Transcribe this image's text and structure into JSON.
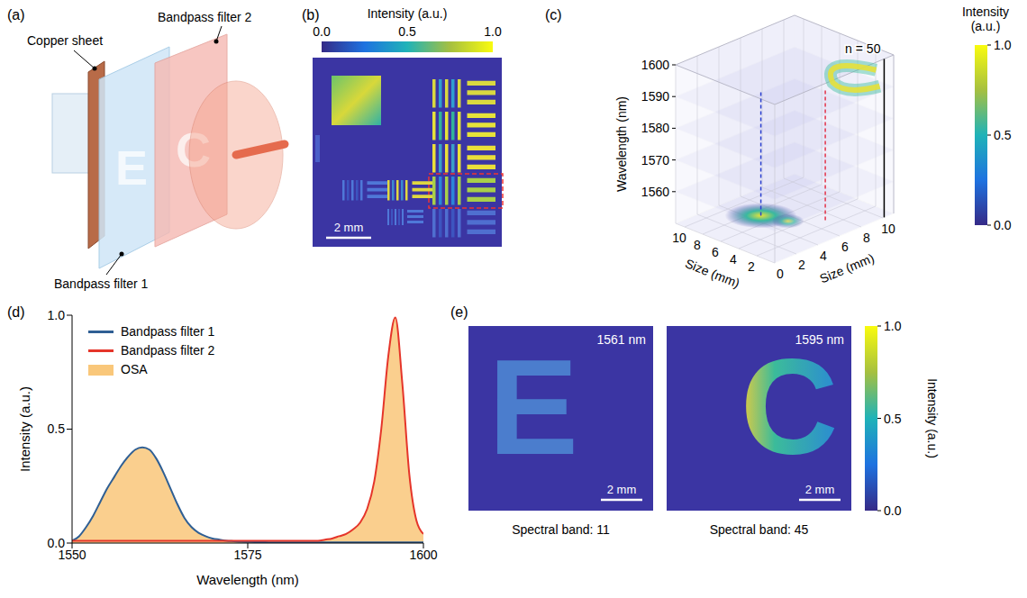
{
  "panels": {
    "a": {
      "letter": "(a)",
      "labels": {
        "copper": "Copper sheet",
        "filter2": "Bandpass filter 2",
        "filter1": "Bandpass filter 1"
      },
      "letters": [
        "E",
        "C"
      ]
    },
    "b": {
      "letter": "(b)",
      "colorbar": {
        "title": "Intensity (a.u.)",
        "range": [
          0,
          1
        ],
        "ticks": [
          {
            "value": 0,
            "label": "0.0"
          },
          {
            "value": 0.5,
            "label": "0.5"
          },
          {
            "value": 1,
            "label": "1.0"
          }
        ]
      },
      "scale_bar": "2 mm"
    },
    "c": {
      "letter": "(c)",
      "wavelength_axis": {
        "title": "Wavelength (nm)",
        "range": [
          1550,
          1600
        ],
        "ticks": [
          1560,
          1570,
          1580,
          1590,
          1600
        ]
      },
      "size_axes": [
        {
          "title": "Size (mm)",
          "range": [
            0,
            11
          ],
          "ticks": [
            2,
            4,
            6,
            8,
            10
          ]
        },
        {
          "title": "Size (mm)",
          "range": [
            0,
            11
          ],
          "ticks": [
            0,
            2,
            4,
            6,
            8,
            10
          ]
        }
      ],
      "annotation": "n = 50",
      "colorbar": {
        "title": "Intensity (a.u.)",
        "range": [
          0,
          1
        ],
        "ticks": [
          {
            "value": 0,
            "label": "0.0"
          },
          {
            "value": 0.5,
            "label": "0.5"
          },
          {
            "value": 1,
            "label": "1.0"
          }
        ]
      }
    },
    "d": {
      "letter": "(d)"
    },
    "e": {
      "letter": "(e)",
      "images": [
        {
          "wavelength_label": "1561 nm",
          "caption": "Spectral band: 11",
          "letter": "E",
          "scale_bar": "2 mm"
        },
        {
          "wavelength_label": "1595 nm",
          "caption": "Spectral band: 45",
          "letter": "C",
          "scale_bar": "2 mm"
        }
      ],
      "colorbar": {
        "title": "Intensity (a.u.)",
        "range": [
          0,
          1
        ],
        "ticks": [
          {
            "value": 0,
            "label": "0.0"
          },
          {
            "value": 0.5,
            "label": "0.5"
          },
          {
            "value": 1,
            "label": "1.0"
          }
        ]
      }
    }
  },
  "chart_data": {
    "type": "line",
    "x_label": "Wavelength (nm)",
    "y_label": "Intensity (a.u.)",
    "xlim": [
      1550,
      1600
    ],
    "xticks": [
      1550,
      1575,
      1600
    ],
    "ylim": [
      0,
      1
    ],
    "yticks": [
      {
        "value": 0,
        "label": "0.0"
      },
      {
        "value": 0.5,
        "label": "0.5"
      },
      {
        "value": 1,
        "label": "1.0"
      }
    ],
    "legend": "upper left",
    "grid": false,
    "x": [
      1550,
      1551,
      1552,
      1553,
      1554,
      1555,
      1556,
      1557,
      1558,
      1559,
      1560,
      1561,
      1562,
      1563,
      1564,
      1565,
      1566,
      1567,
      1568,
      1569,
      1570,
      1571,
      1572,
      1573,
      1574,
      1575,
      1576,
      1577,
      1578,
      1579,
      1580,
      1581,
      1582,
      1583,
      1584,
      1585,
      1586,
      1587,
      1588,
      1589,
      1590,
      1591,
      1592,
      1593,
      1594,
      1595,
      1596,
      1597,
      1598,
      1599,
      1600
    ],
    "series": [
      {
        "name": "Bandpass filter 1",
        "type": "line",
        "color": "#2f5f94",
        "values": [
          0.01,
          0.03,
          0.07,
          0.12,
          0.18,
          0.24,
          0.29,
          0.34,
          0.38,
          0.41,
          0.42,
          0.41,
          0.37,
          0.31,
          0.24,
          0.17,
          0.11,
          0.07,
          0.045,
          0.03,
          0.02,
          0.015,
          0.01,
          0.008,
          0.006,
          0.005,
          0.004,
          0.004,
          0.003,
          0.003,
          0.003,
          0.003,
          0.003,
          0.003,
          0.003,
          0.003,
          0.003,
          0.003,
          0.003,
          0.003,
          0.003,
          0.003,
          0.003,
          0.003,
          0.003,
          0.003,
          0.003,
          0.003,
          0.003,
          0.003,
          0.003
        ]
      },
      {
        "name": "Bandpass filter 2",
        "type": "line",
        "color": "#e5352a",
        "values": [
          0.01,
          0.01,
          0.01,
          0.01,
          0.01,
          0.01,
          0.01,
          0.01,
          0.01,
          0.01,
          0.01,
          0.01,
          0.01,
          0.01,
          0.01,
          0.01,
          0.01,
          0.01,
          0.01,
          0.01,
          0.01,
          0.01,
          0.01,
          0.01,
          0.01,
          0.01,
          0.01,
          0.01,
          0.01,
          0.01,
          0.01,
          0.01,
          0.01,
          0.01,
          0.01,
          0.01,
          0.015,
          0.02,
          0.03,
          0.04,
          0.06,
          0.09,
          0.15,
          0.27,
          0.5,
          0.82,
          0.99,
          0.7,
          0.3,
          0.1,
          0.04
        ]
      },
      {
        "name": "OSA",
        "type": "area",
        "color": "#f9c77a",
        "values": [
          0.01,
          0.03,
          0.07,
          0.12,
          0.18,
          0.24,
          0.29,
          0.34,
          0.38,
          0.41,
          0.42,
          0.41,
          0.37,
          0.31,
          0.24,
          0.17,
          0.11,
          0.07,
          0.045,
          0.03,
          0.02,
          0.015,
          0.01,
          0.01,
          0.01,
          0.01,
          0.01,
          0.01,
          0.01,
          0.01,
          0.01,
          0.01,
          0.01,
          0.01,
          0.01,
          0.01,
          0.015,
          0.02,
          0.03,
          0.04,
          0.06,
          0.09,
          0.15,
          0.27,
          0.5,
          0.82,
          0.99,
          0.7,
          0.3,
          0.1,
          0.04
        ]
      }
    ]
  }
}
